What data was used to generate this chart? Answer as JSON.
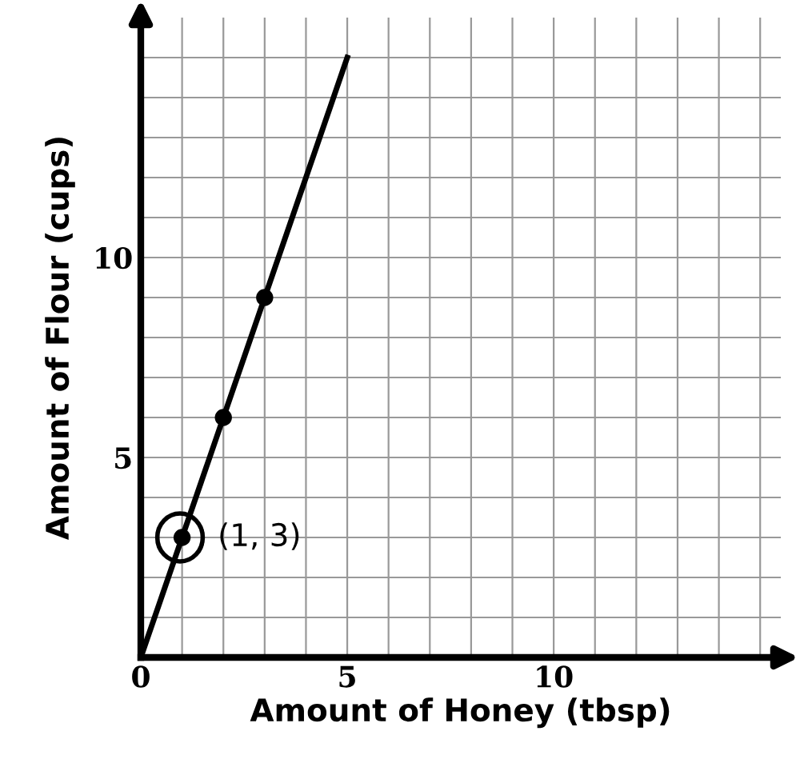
{
  "chart_data": {
    "type": "line",
    "xlabel": "Amount of Honey (tbsp)",
    "ylabel": "Amount of Flour (cups)",
    "xlim": [
      0,
      15.5
    ],
    "ylim": [
      0,
      16
    ],
    "xticks": [
      0,
      {
        "value": 1,
        "label": null
      },
      {
        "value": 2,
        "label": null
      },
      {
        "value": 3,
        "label": null
      },
      {
        "value": 4,
        "label": null
      },
      5,
      {
        "value": 6,
        "label": null
      },
      {
        "value": 7,
        "label": null
      },
      {
        "value": 8,
        "label": null
      },
      {
        "value": 9,
        "label": null
      },
      10,
      {
        "value": 11,
        "label": null
      },
      {
        "value": 12,
        "label": null
      },
      {
        "value": 13,
        "label": null
      },
      {
        "value": 14,
        "label": null
      },
      {
        "value": 15,
        "label": null
      }
    ],
    "yticks": [
      {
        "value": 1,
        "label": null
      },
      {
        "value": 2,
        "label": null
      },
      {
        "value": 3,
        "label": null
      },
      {
        "value": 4,
        "label": null
      },
      5,
      {
        "value": 6,
        "label": null
      },
      {
        "value": 7,
        "label": null
      },
      {
        "value": 8,
        "label": null
      },
      {
        "value": 9,
        "label": null
      },
      10,
      {
        "value": 11,
        "label": null
      },
      {
        "value": 12,
        "label": null
      },
      {
        "value": 13,
        "label": null
      },
      {
        "value": 14,
        "label": null
      },
      {
        "value": 15,
        "label": null
      }
    ],
    "grid": true,
    "series": [
      {
        "color": "#000000",
        "x": [
          0,
          5
        ],
        "values": [
          0,
          15
        ],
        "marker": "none"
      },
      {
        "type": "scatter",
        "color": "#000000",
        "x": [
          1,
          2,
          3
        ],
        "values": [
          3,
          6,
          9
        ],
        "marker": "circle"
      }
    ],
    "annotations": [
      {
        "text": "(1, 3)",
        "x": 1,
        "y": 3
      }
    ]
  }
}
